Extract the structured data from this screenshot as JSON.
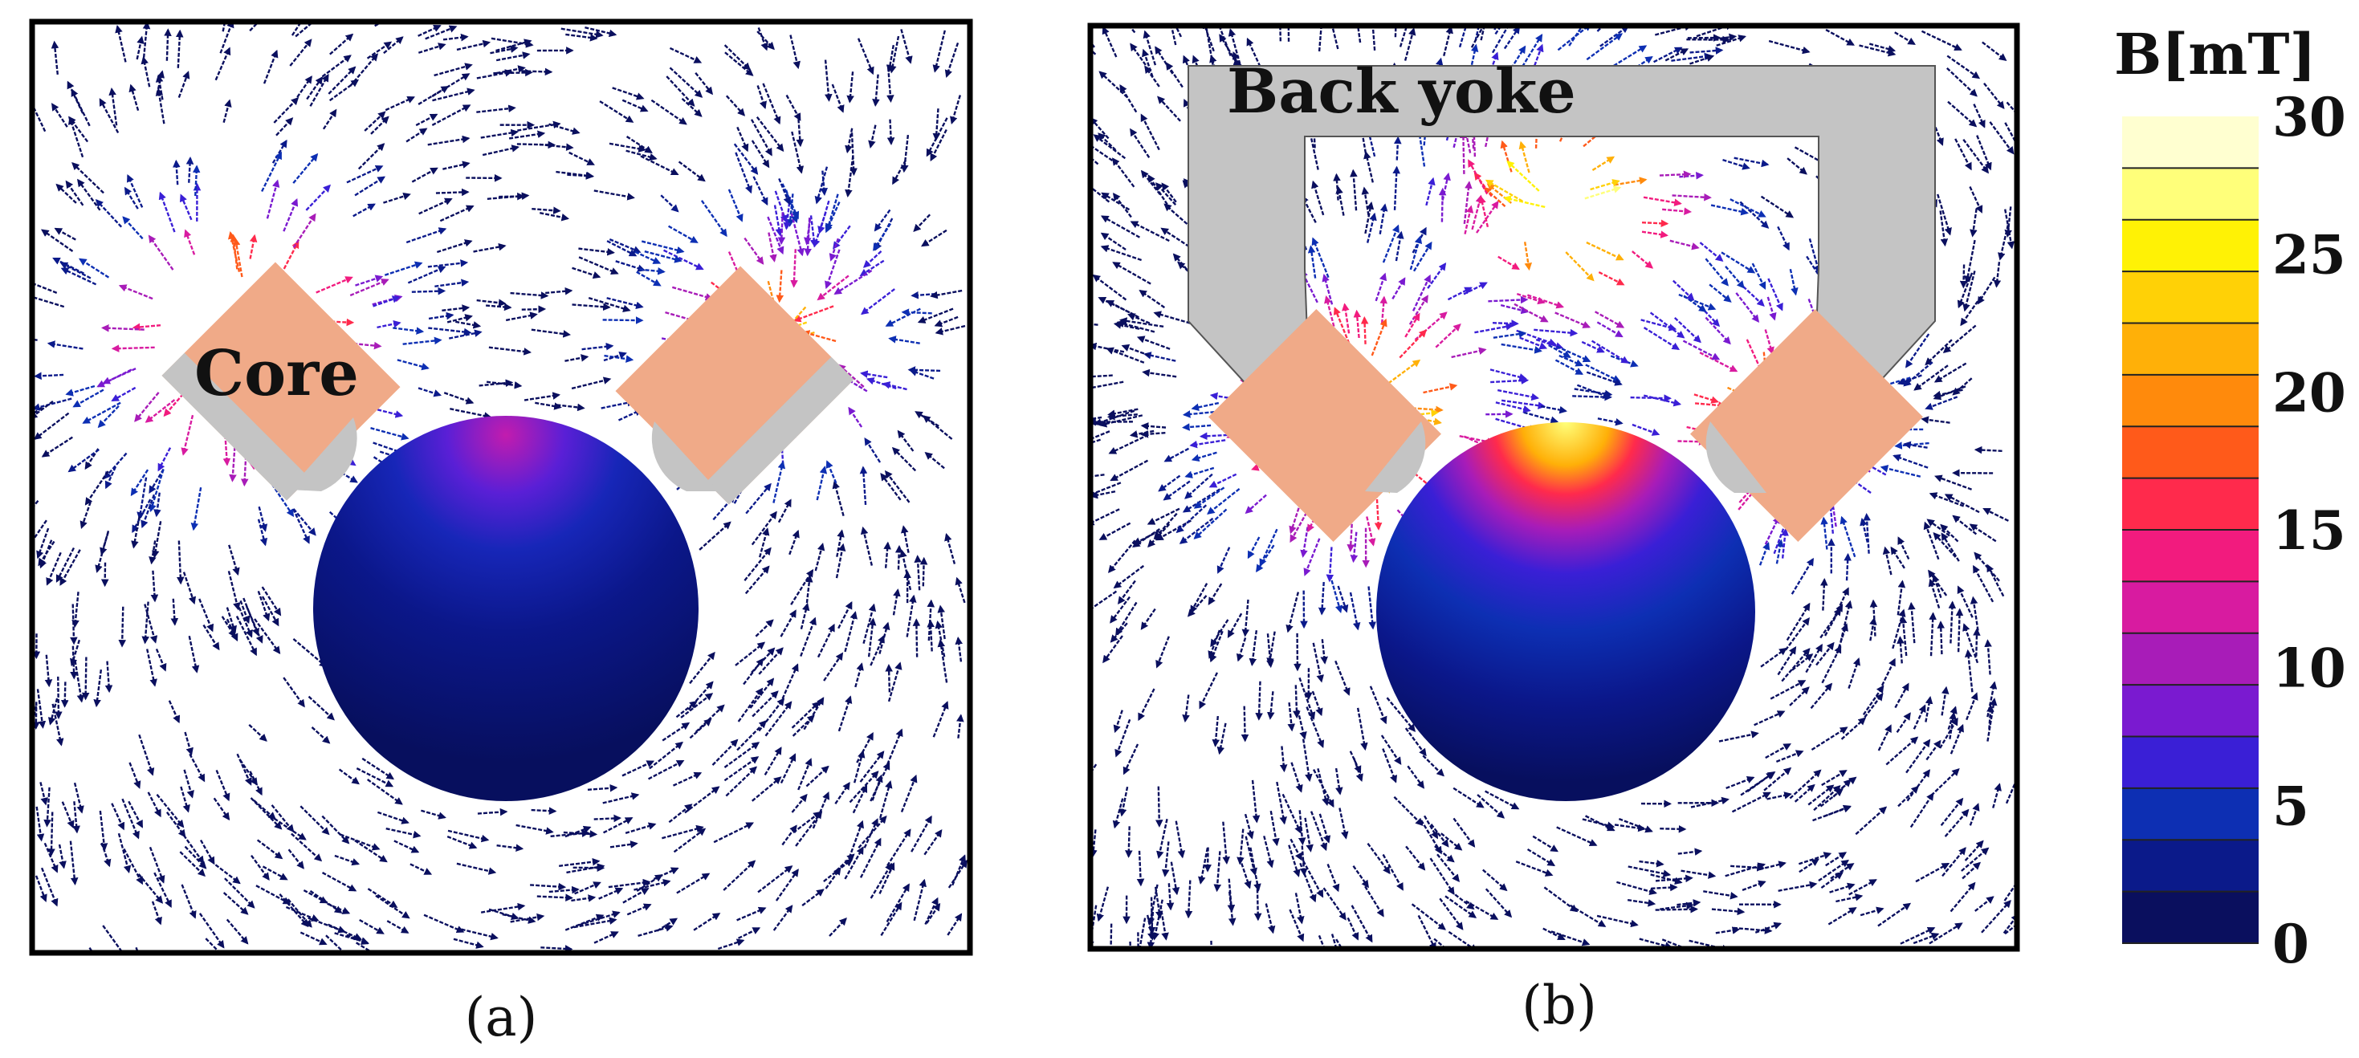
{
  "panels": [
    {
      "id": "a",
      "caption": "(a)",
      "core_label": "Core"
    },
    {
      "id": "b",
      "caption": "(b)",
      "yoke_label": "Back yoke"
    }
  ],
  "colorbar": {
    "title": "B[mT]",
    "min": 0,
    "max": 30,
    "ticks": [
      "0",
      "5",
      "10",
      "15",
      "20",
      "25",
      "30"
    ],
    "colors": [
      "#0a0f5e",
      "#0b1a8a",
      "#0d2fb3",
      "#3a1fd6",
      "#7a1ad0",
      "#a81cb8",
      "#d81ba0",
      "#f21b7e",
      "#ff2a4c",
      "#ff5a1a",
      "#ff8a0c",
      "#ffb008",
      "#ffd106",
      "#fff205",
      "#ffff7a",
      "#ffffd0"
    ]
  },
  "colors": {
    "core": "#f0aa88",
    "pole": "#c4c4c4",
    "frame": "#000000"
  }
}
